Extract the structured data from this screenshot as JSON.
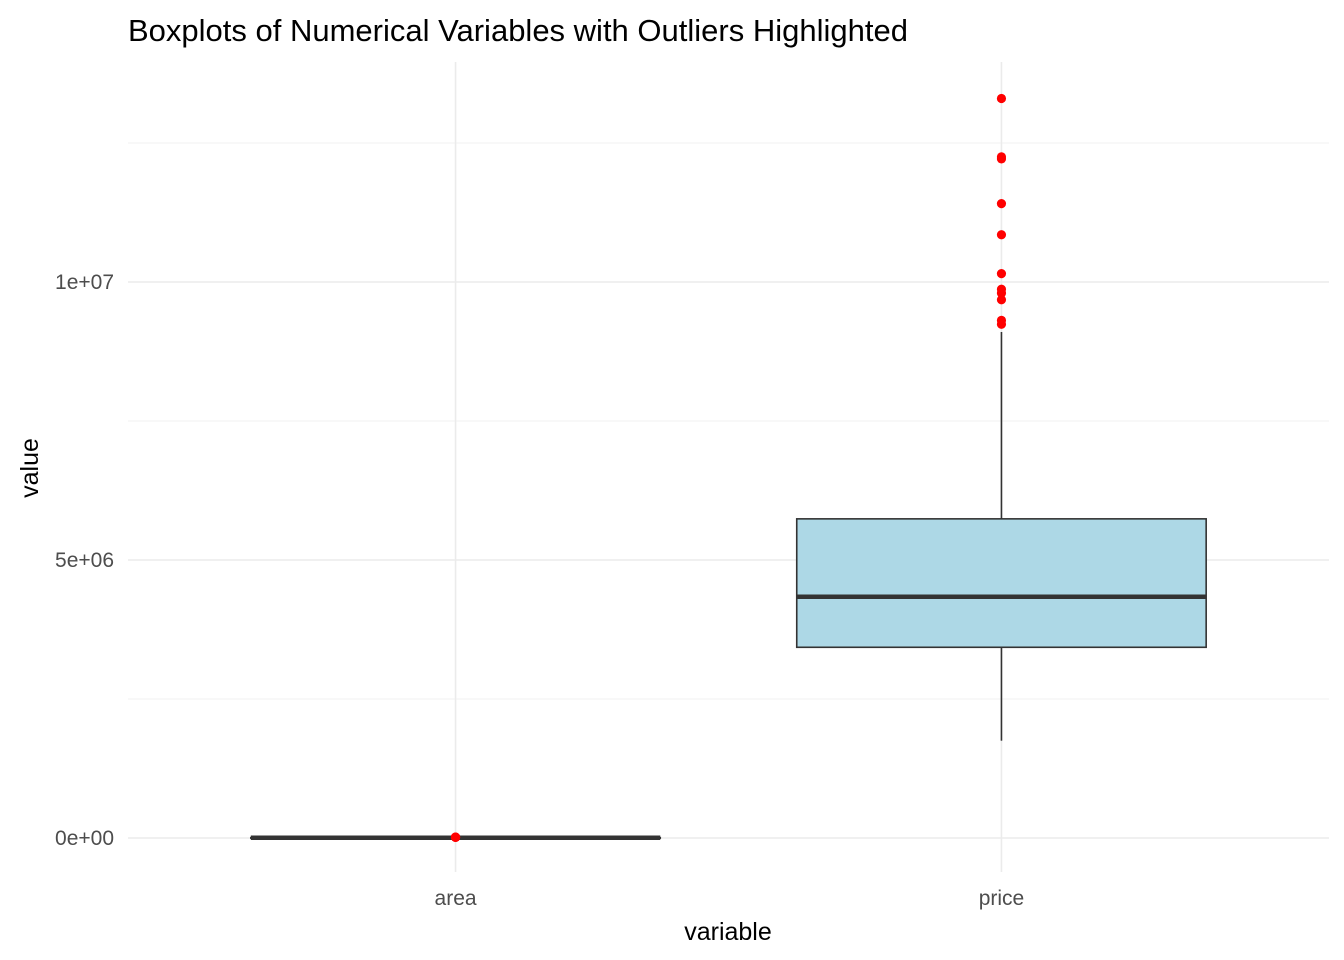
{
  "chart_data": {
    "type": "boxplot",
    "title": "Boxplots of Numerical Variables with Outliers Highlighted",
    "xlabel": "variable",
    "ylabel": "value",
    "ylim": [
      -600000,
      13950000
    ],
    "yticks": [
      0,
      5000000,
      10000000
    ],
    "ytick_labels": [
      "0e+00",
      "5e+06",
      "1e+07"
    ],
    "categories": [
      "area",
      "price"
    ],
    "boxes": [
      {
        "category": "area",
        "whisker_low": 1650,
        "q1": 3600,
        "median": 4600,
        "q3": 6360,
        "whisker_high": 10500,
        "outliers": [
          11000,
          12000,
          13200,
          15600,
          16200
        ]
      },
      {
        "category": "price",
        "whisker_low": 1750000,
        "q1": 3430000,
        "median": 4340000,
        "q3": 5740000,
        "whisker_high": 9100000,
        "outliers": [
          9240000,
          9310000,
          9681000,
          9800000,
          9870000,
          10150000,
          10850000,
          11410000,
          12215000,
          12250000,
          13300000
        ]
      }
    ],
    "box_fill": "#add8e6",
    "box_stroke": "#333333",
    "outlier_color": "#ff0000",
    "grid": true,
    "legend": "none"
  }
}
